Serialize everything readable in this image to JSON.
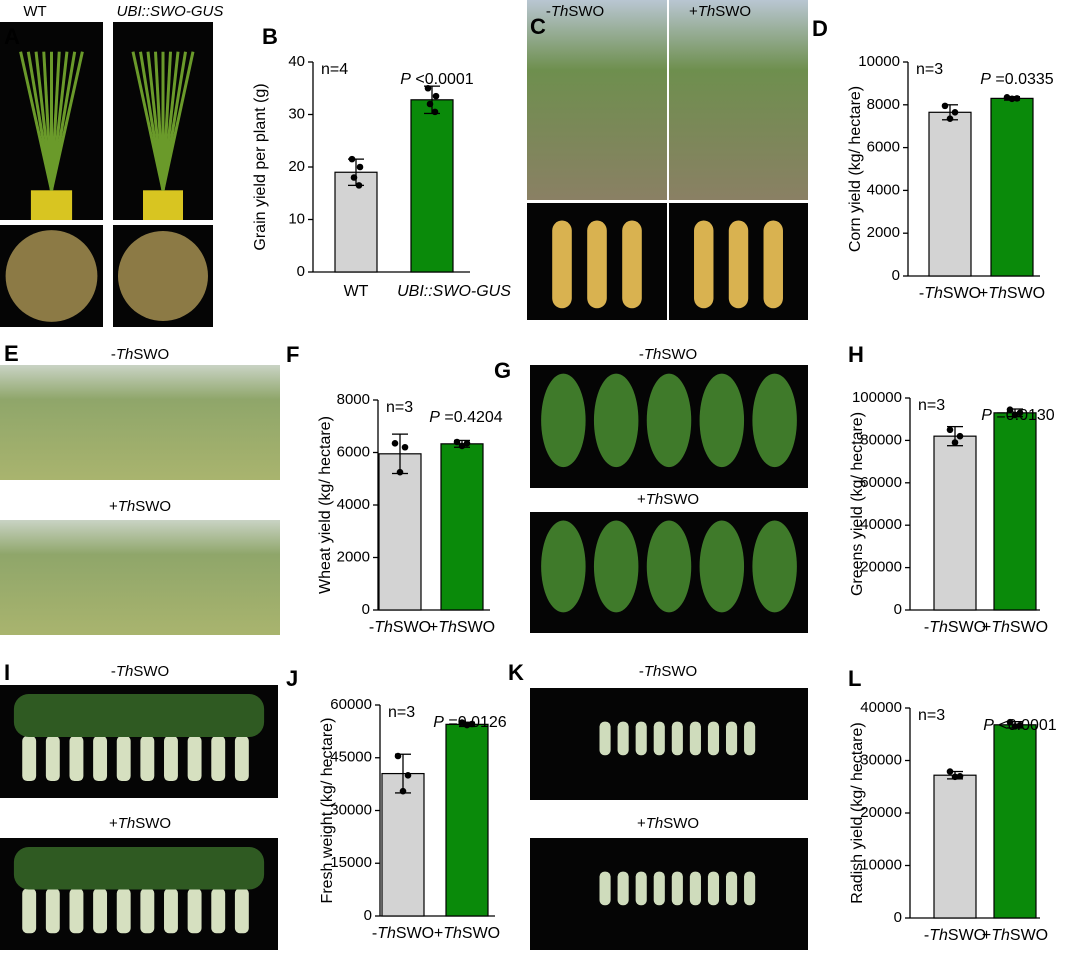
{
  "panel_letters": [
    "A",
    "B",
    "C",
    "D",
    "E",
    "F",
    "G",
    "H",
    "I",
    "J",
    "K",
    "L"
  ],
  "photo_labels": {
    "A": [
      "WT",
      "UBI::SWO-GUS"
    ],
    "C": [
      "-ThSWO",
      "+ThSWO"
    ],
    "E": [
      "-ThSWO",
      "+ThSWO"
    ],
    "G": [
      "-ThSWO",
      "+ThSWO"
    ],
    "I": [
      "-ThSWO",
      "+ThSWO"
    ],
    "K": [
      "-ThSWO",
      "+ThSWO"
    ]
  },
  "chart_data": [
    {
      "type": "bar",
      "ylabel": "Grain yield per plant (g)",
      "categories": [
        "WT",
        "UBI::SWO-GUS"
      ],
      "colors": [
        "#d3d3d3",
        "#0a8a0a"
      ],
      "values": [
        19,
        32.8
      ],
      "errors": [
        2.5,
        2.6
      ],
      "points": [
        [
          21.5,
          20,
          18,
          16.5
        ],
        [
          35,
          33.5,
          32,
          30.5
        ]
      ],
      "annotations": [
        "n=4",
        "P <0.0001"
      ],
      "ylim": [
        0,
        40
      ],
      "yticks": [
        0,
        10,
        20,
        30,
        40
      ]
    },
    {
      "type": "bar",
      "ylabel": "Corn yield (kg/ hectare)",
      "categories": [
        "-ThSWO",
        "+ThSWO"
      ],
      "colors": [
        "#d3d3d3",
        "#0a8a0a"
      ],
      "values": [
        7650,
        8300
      ],
      "errors": [
        350,
        80
      ],
      "points": [
        [
          7950,
          7650,
          7350
        ],
        [
          8350,
          8300,
          8280
        ]
      ],
      "annotations": [
        "n=3",
        "P =0.0335"
      ],
      "ylim": [
        0,
        10000
      ],
      "yticks": [
        0,
        2000,
        4000,
        6000,
        8000,
        10000
      ]
    },
    {
      "type": "bar",
      "ylabel": "Wheat yield (kg/ hectare)",
      "categories": [
        "-ThSWO",
        "+ThSWO"
      ],
      "colors": [
        "#d3d3d3",
        "#0a8a0a"
      ],
      "values": [
        5950,
        6330
      ],
      "errors": [
        750,
        130
      ],
      "points": [
        [
          6350,
          6200,
          5250
        ],
        [
          6400,
          6350,
          6250
        ]
      ],
      "annotations": [
        "n=3",
        "P =0.4204"
      ],
      "ylim": [
        0,
        8000
      ],
      "yticks": [
        0,
        2000,
        4000,
        6000,
        8000
      ]
    },
    {
      "type": "bar",
      "ylabel": "Greens yield (kg/ hectare)",
      "categories": [
        "-ThSWO",
        "+ThSWO"
      ],
      "colors": [
        "#d3d3d3",
        "#0a8a0a"
      ],
      "values": [
        82000,
        93000
      ],
      "errors": [
        4500,
        1800
      ],
      "points": [
        [
          85000,
          82000,
          79000
        ],
        [
          94500,
          93000,
          92000
        ]
      ],
      "annotations": [
        "n=3",
        "P =0.0130"
      ],
      "ylim": [
        0,
        100000
      ],
      "yticks": [
        0,
        20000,
        40000,
        60000,
        80000,
        100000
      ]
    },
    {
      "type": "bar",
      "ylabel": "Fresh weight (kg/ hectare)",
      "categories": [
        "-ThSWO",
        "+ThSWO"
      ],
      "colors": [
        "#d3d3d3",
        "#0a8a0a"
      ],
      "values": [
        40500,
        54500
      ],
      "errors": [
        5500,
        600
      ],
      "points": [
        [
          45500,
          40000,
          35500
        ],
        [
          55000,
          54600,
          54300
        ]
      ],
      "annotations": [
        "n=3",
        "P =0.0126"
      ],
      "ylim": [
        0,
        60000
      ],
      "yticks": [
        0,
        15000,
        30000,
        45000,
        60000
      ]
    },
    {
      "type": "bar",
      "ylabel": "Radish yield (kg/ hectare)",
      "categories": [
        "-ThSWO",
        "+ThSWO"
      ],
      "colors": [
        "#d3d3d3",
        "#0a8a0a"
      ],
      "values": [
        27200,
        36800
      ],
      "errors": [
        700,
        600
      ],
      "points": [
        [
          27900,
          27000,
          26900
        ],
        [
          37300,
          36700,
          36500
        ]
      ],
      "annotations": [
        "n=3",
        "P <0.0001"
      ],
      "ylim": [
        0,
        40000
      ],
      "yticks": [
        0,
        10000,
        20000,
        30000,
        40000
      ]
    }
  ]
}
